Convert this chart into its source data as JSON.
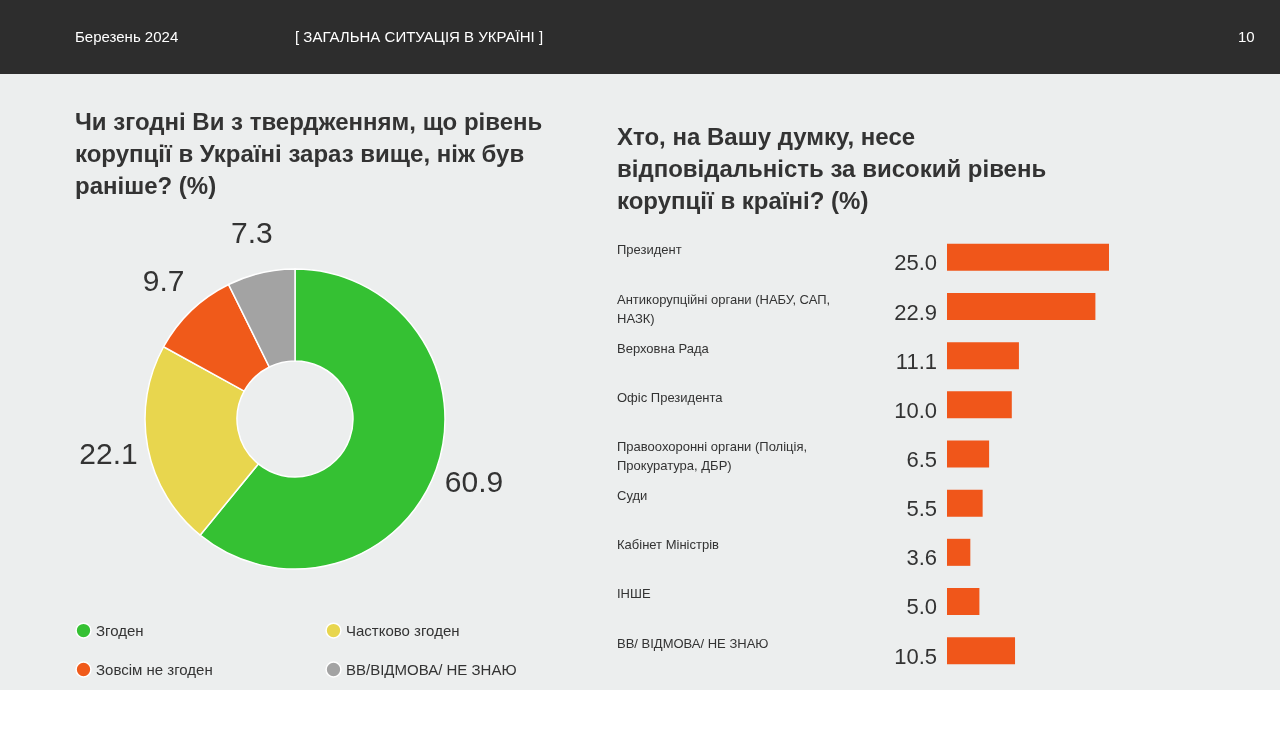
{
  "chart_data": [
    {
      "type": "donut",
      "title": "Чи згодні Ви з твердженням, що рівень корупції в Україні зараз вище, ніж був раніше? (%)",
      "categories": [
        "Згоден",
        "Частково згоден",
        "Зовсім не згоден",
        "ВВ/ВІДМОВА/ НЕ ЗНАЮ"
      ],
      "values": [
        60.9,
        22.1,
        9.7,
        7.3
      ],
      "colors": [
        "#35c133",
        "#e8d64e",
        "#f05a1a",
        "#a3a3a3"
      ],
      "data_labels": true,
      "legend": "bottom",
      "annotations": [
        "Березень 2024",
        "[ ЗАГАЛЬНА СИТУАЦІЯ В УКРАЇНІ ]",
        "10"
      ]
    },
    {
      "type": "bar",
      "orientation": "horizontal",
      "title": "Хто, на Вашу думку, несе відповідальність за високий рівень корупції в країні? (%)",
      "categories": [
        "Президент",
        "Антикорупційні органи (НАБУ, САП, НАЗК)",
        "Верховна Рада",
        "Офіс Президента",
        "Правоохоронні органи (Поліція, Прокуратура, ДБР)",
        "Суди",
        "Кабінет Міністрів",
        "ІНШЕ",
        "ВВ/ ВІДМОВА/ НЕ ЗНАЮ"
      ],
      "values": [
        25.0,
        22.9,
        11.1,
        10.0,
        6.5,
        5.5,
        3.6,
        5.0,
        10.5
      ],
      "value_labels": [
        "25.0",
        "22.9",
        "11.1",
        "10.0",
        "6.5",
        "5.5",
        "3.6",
        "5.0",
        "10.5"
      ],
      "color": "#f0561a"
    }
  ]
}
